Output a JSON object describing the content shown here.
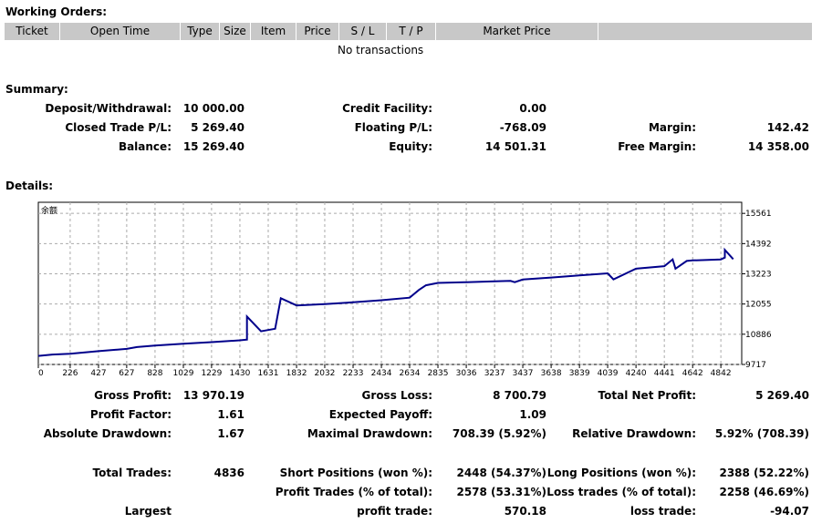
{
  "working_orders": {
    "title": "Working Orders:",
    "columns": [
      "Ticket",
      "Open Time",
      "Type",
      "Size",
      "Item",
      "Price",
      "S / L",
      "T / P",
      "Market Price"
    ],
    "empty_text": "No transactions"
  },
  "summary": {
    "title": "Summary:",
    "rows": [
      [
        {
          "label": "Deposit/Withdrawal:",
          "value": "10 000.00"
        },
        {
          "label": "Credit Facility:",
          "value": "0.00"
        },
        {
          "label": "",
          "value": ""
        }
      ],
      [
        {
          "label": "Closed Trade P/L:",
          "value": "5 269.40"
        },
        {
          "label": "Floating P/L:",
          "value": "-768.09"
        },
        {
          "label": "Margin:",
          "value": "142.42"
        }
      ],
      [
        {
          "label": "Balance:",
          "value": "15 269.40"
        },
        {
          "label": "Equity:",
          "value": "14 501.31"
        },
        {
          "label": "Free Margin:",
          "value": "14 358.00"
        }
      ]
    ]
  },
  "details": {
    "title": "Details:",
    "rows1": [
      [
        {
          "label": "Gross Profit:",
          "value": "13 970.19"
        },
        {
          "label": "Gross Loss:",
          "value": "8 700.79"
        },
        {
          "label": "Total Net Profit:",
          "value": "5 269.40"
        }
      ],
      [
        {
          "label": "Profit Factor:",
          "value": "1.61"
        },
        {
          "label": "Expected Payoff:",
          "value": "1.09"
        },
        {
          "label": "",
          "value": ""
        }
      ],
      [
        {
          "label": "Absolute Drawdown:",
          "value": "1.67"
        },
        {
          "label": "Maximal Drawdown:",
          "value": "708.39 (5.92%)"
        },
        {
          "label": "Relative Drawdown:",
          "value": "5.92% (708.39)"
        }
      ]
    ],
    "rows2": [
      [
        {
          "label": "Total Trades:",
          "value": "4836"
        },
        {
          "label": "Short Positions (won %):",
          "value": "2448 (54.37%)"
        },
        {
          "label": "Long Positions (won %):",
          "value": "2388 (52.22%)"
        }
      ],
      [
        {
          "label": "",
          "value": ""
        },
        {
          "label": "Profit Trades (% of total):",
          "value": "2578 (53.31%)"
        },
        {
          "label": "Loss trades (% of total):",
          "value": "2258 (46.69%)"
        }
      ],
      [
        {
          "label": "Largest",
          "value": ""
        },
        {
          "label": "profit trade:",
          "value": "570.18"
        },
        {
          "label": "loss trade:",
          "value": "-94.07"
        }
      ]
    ]
  },
  "chart_data": {
    "type": "line",
    "title": "余额",
    "x_ticks": [
      "0",
      "226",
      "427",
      "627",
      "828",
      "1029",
      "1229",
      "1430",
      "1631",
      "1832",
      "2032",
      "2233",
      "2434",
      "2634",
      "2835",
      "3036",
      "3237",
      "3437",
      "3638",
      "3839",
      "4039",
      "4240",
      "4441",
      "4642",
      "4842"
    ],
    "y_ticks": [
      "15561",
      "14392",
      "13223",
      "12055",
      "10886",
      "9717"
    ],
    "xlim": [
      0,
      4990
    ],
    "ylim": [
      9717,
      15990
    ],
    "line_color": "#00008b",
    "grid_color": "#aaaaaa",
    "series": [
      {
        "name": "",
        "x": [
          0,
          100,
          226,
          427,
          627,
          700,
          828,
          1029,
          1229,
          1430,
          1480,
          1480,
          1580,
          1680,
          1680,
          1720,
          1832,
          2032,
          2233,
          2434,
          2634,
          2700,
          2750,
          2835,
          3036,
          3237,
          3350,
          3380,
          3437,
          3638,
          3839,
          4039,
          4080,
          4240,
          4441,
          4500,
          4520,
          4600,
          4642,
          4842,
          4870,
          4870,
          4930
        ],
        "y": [
          10050,
          10100,
          10130,
          10230,
          10320,
          10390,
          10450,
          10520,
          10580,
          10650,
          10680,
          11570,
          11000,
          11100,
          11100,
          12280,
          12000,
          12050,
          12120,
          12200,
          12300,
          12600,
          12780,
          12870,
          12900,
          12930,
          12950,
          12900,
          13000,
          13080,
          13160,
          13240,
          13010,
          13420,
          13520,
          13780,
          13420,
          13720,
          13740,
          13780,
          13850,
          14150,
          13790
        ]
      }
    ]
  }
}
